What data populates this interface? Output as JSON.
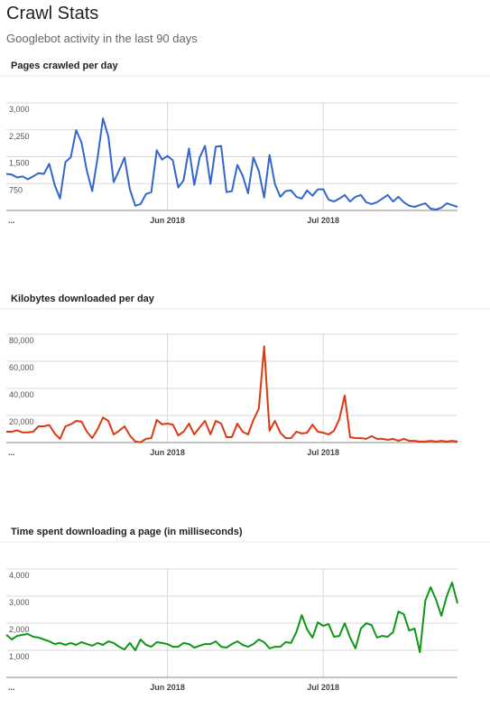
{
  "header": {
    "title": "Crawl Stats",
    "subtitle": "Googlebot activity in the last 90 days"
  },
  "chart_data": [
    {
      "type": "line",
      "title": "Pages crawled per day",
      "color": "#3366cc",
      "grid": true,
      "values": [
        1020,
        1000,
        920,
        950,
        870,
        950,
        1040,
        1020,
        1300,
        710,
        330,
        1350,
        1480,
        2240,
        1900,
        1100,
        540,
        1480,
        2570,
        2060,
        790,
        1120,
        1480,
        590,
        130,
        180,
        460,
        510,
        1680,
        1420,
        1520,
        1400,
        640,
        840,
        1730,
        710,
        1480,
        1800,
        740,
        1780,
        1800,
        510,
        540,
        1270,
        970,
        480,
        1480,
        1100,
        360,
        1550,
        740,
        380,
        540,
        560,
        380,
        330,
        560,
        410,
        590,
        590,
        300,
        250,
        330,
        430,
        250,
        380,
        430,
        230,
        180,
        230,
        330,
        430,
        250,
        380,
        230,
        130,
        100,
        150,
        200,
        50,
        25,
        75,
        200,
        150,
        100
      ],
      "xlim": [
        0,
        84
      ],
      "xticks": [
        {
          "value": 0,
          "label": "..."
        },
        {
          "value": 30,
          "label": "Jun 2018"
        },
        {
          "value": 59,
          "label": "Jul 2018"
        }
      ],
      "ylim": [
        0,
        3000
      ],
      "yticks": [
        750,
        {
          "value": 1500,
          "label": "1,500"
        },
        {
          "value": 2250,
          "label": "2,250"
        },
        {
          "value": 3000,
          "label": "3,000"
        }
      ]
    },
    {
      "type": "line",
      "title": "Kilobytes downloaded per day",
      "color": "#dc3912",
      "grid": true,
      "values": [
        8000,
        8000,
        9000,
        7500,
        7500,
        8000,
        12000,
        12000,
        13000,
        6700,
        2700,
        12000,
        13500,
        16000,
        15500,
        8000,
        3300,
        10000,
        18500,
        16000,
        6000,
        8700,
        12000,
        5300,
        700,
        300,
        2700,
        3300,
        16700,
        13500,
        14000,
        13300,
        5300,
        8000,
        14000,
        6000,
        11300,
        16000,
        6000,
        16000,
        14000,
        4000,
        4000,
        14000,
        8000,
        6000,
        16700,
        25000,
        71000,
        8700,
        16000,
        7300,
        3300,
        3300,
        8000,
        6700,
        7300,
        13300,
        8000,
        7300,
        6000,
        8700,
        17300,
        34700,
        4000,
        3300,
        3300,
        2700,
        4700,
        2700,
        2700,
        2000,
        2700,
        1300,
        2700,
        1300,
        1300,
        700,
        700,
        1300,
        700,
        1300,
        700,
        1300,
        700
      ],
      "xlim": [
        0,
        84
      ],
      "xticks": [
        {
          "value": 0,
          "label": "..."
        },
        {
          "value": 30,
          "label": "Jun 2018"
        },
        {
          "value": 59,
          "label": "Jul 2018"
        }
      ],
      "ylim": [
        0,
        80000
      ],
      "yticks": [
        {
          "value": 20000,
          "label": "20,000"
        },
        {
          "value": 40000,
          "label": "40,000"
        },
        {
          "value": 60000,
          "label": "60,000"
        },
        {
          "value": 80000,
          "label": "80,000"
        }
      ]
    },
    {
      "type": "line",
      "title": "Time spent downloading a page (in milliseconds)",
      "color": "#109618",
      "grid": true,
      "values": [
        1570,
        1400,
        1530,
        1570,
        1600,
        1500,
        1470,
        1400,
        1330,
        1230,
        1270,
        1200,
        1270,
        1200,
        1300,
        1230,
        1170,
        1270,
        1200,
        1330,
        1270,
        1130,
        1030,
        1270,
        1000,
        1400,
        1200,
        1130,
        1300,
        1270,
        1230,
        1130,
        1130,
        1270,
        1230,
        1100,
        1170,
        1230,
        1230,
        1330,
        1130,
        1100,
        1230,
        1330,
        1200,
        1130,
        1230,
        1400,
        1300,
        1070,
        1130,
        1130,
        1300,
        1270,
        1670,
        2300,
        1770,
        1470,
        2030,
        1900,
        1970,
        1500,
        1530,
        2000,
        1470,
        1070,
        1800,
        2000,
        1930,
        1470,
        1530,
        1500,
        1670,
        2430,
        2330,
        1730,
        1800,
        930,
        2830,
        3330,
        2870,
        2270,
        3000,
        3500,
        2730
      ],
      "xlim": [
        0,
        84
      ],
      "xticks": [
        {
          "value": 0,
          "label": "..."
        },
        {
          "value": 30,
          "label": "Jun 2018"
        },
        {
          "value": 59,
          "label": "Jul 2018"
        }
      ],
      "ylim": [
        0,
        4000
      ],
      "yticks": [
        {
          "value": 1000,
          "label": "1,000"
        },
        {
          "value": 2000,
          "label": "2,000"
        },
        {
          "value": 3000,
          "label": "3,000"
        },
        {
          "value": 4000,
          "label": "4,000"
        }
      ]
    }
  ]
}
